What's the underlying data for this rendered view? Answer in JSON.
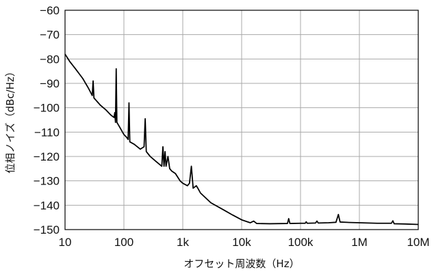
{
  "chart_data": {
    "type": "line",
    "xlabel": "オフセット周波数（Hz）",
    "ylabel": "位相ノイズ（dBc/Hz）",
    "x_scale": "log",
    "xlim": [
      10,
      10000000
    ],
    "ylim": [
      -150,
      -60
    ],
    "grid": true,
    "x_tick_values": [
      10,
      100,
      1000,
      10000,
      100000,
      1000000,
      10000000
    ],
    "x_tick_labels": [
      "10",
      "100",
      "1k",
      "10k",
      "100k",
      "1M",
      "10M"
    ],
    "y_tick_values": [
      -60,
      -70,
      -80,
      -90,
      -100,
      -110,
      -120,
      -130,
      -140,
      -150
    ],
    "y_tick_labels": [
      "−60",
      "−70",
      "−80",
      "−90",
      "−100",
      "−110",
      "−120",
      "−130",
      "−140",
      "−150"
    ],
    "series": [
      {
        "line_color": "#000000",
        "points": [
          [
            10,
            -78
          ],
          [
            12,
            -81
          ],
          [
            15,
            -84
          ],
          [
            20,
            -88
          ],
          [
            25,
            -92
          ],
          [
            29,
            -95
          ],
          [
            30,
            -89
          ],
          [
            31,
            -96
          ],
          [
            40,
            -99
          ],
          [
            50,
            -101
          ],
          [
            60,
            -103
          ],
          [
            68,
            -104
          ],
          [
            70,
            -102
          ],
          [
            72,
            -106
          ],
          [
            74,
            -84
          ],
          [
            76,
            -106
          ],
          [
            85,
            -108
          ],
          [
            100,
            -111
          ],
          [
            110,
            -112
          ],
          [
            118,
            -113
          ],
          [
            122,
            -98
          ],
          [
            126,
            -114
          ],
          [
            150,
            -115
          ],
          [
            190,
            -117
          ],
          [
            220,
            -116
          ],
          [
            230,
            -104.5
          ],
          [
            240,
            -118
          ],
          [
            280,
            -120
          ],
          [
            350,
            -122
          ],
          [
            440,
            -124
          ],
          [
            460,
            -116
          ],
          [
            480,
            -124
          ],
          [
            500,
            -118
          ],
          [
            520,
            -124
          ],
          [
            560,
            -120
          ],
          [
            600,
            -125
          ],
          [
            650,
            -126
          ],
          [
            750,
            -127
          ],
          [
            900,
            -130
          ],
          [
            1000,
            -131
          ],
          [
            1200,
            -132
          ],
          [
            1300,
            -131
          ],
          [
            1400,
            -124
          ],
          [
            1500,
            -133
          ],
          [
            1700,
            -132
          ],
          [
            1800,
            -133
          ],
          [
            2000,
            -135
          ],
          [
            3000,
            -139
          ],
          [
            5000,
            -142
          ],
          [
            7000,
            -144
          ],
          [
            10000,
            -146
          ],
          [
            14000,
            -147.2
          ],
          [
            16000,
            -146.5
          ],
          [
            18000,
            -147.5
          ],
          [
            30000,
            -147.6
          ],
          [
            60000,
            -147.5
          ],
          [
            63000,
            -145.5
          ],
          [
            66000,
            -147.5
          ],
          [
            100000,
            -147.4
          ],
          [
            120000,
            -147.4
          ],
          [
            125000,
            -146.8
          ],
          [
            130000,
            -147.4
          ],
          [
            180000,
            -147.3
          ],
          [
            190000,
            -146.5
          ],
          [
            200000,
            -147.3
          ],
          [
            300000,
            -147.2
          ],
          [
            400000,
            -147.0
          ],
          [
            440000,
            -143.8
          ],
          [
            470000,
            -146.9
          ],
          [
            700000,
            -147.1
          ],
          [
            1000000,
            -147.2
          ],
          [
            2000000,
            -147.4
          ],
          [
            3500000,
            -147.4
          ],
          [
            3700000,
            -146.4
          ],
          [
            3900000,
            -147.6
          ],
          [
            6000000,
            -147.7
          ],
          [
            10000000,
            -147.9
          ]
        ]
      }
    ]
  }
}
